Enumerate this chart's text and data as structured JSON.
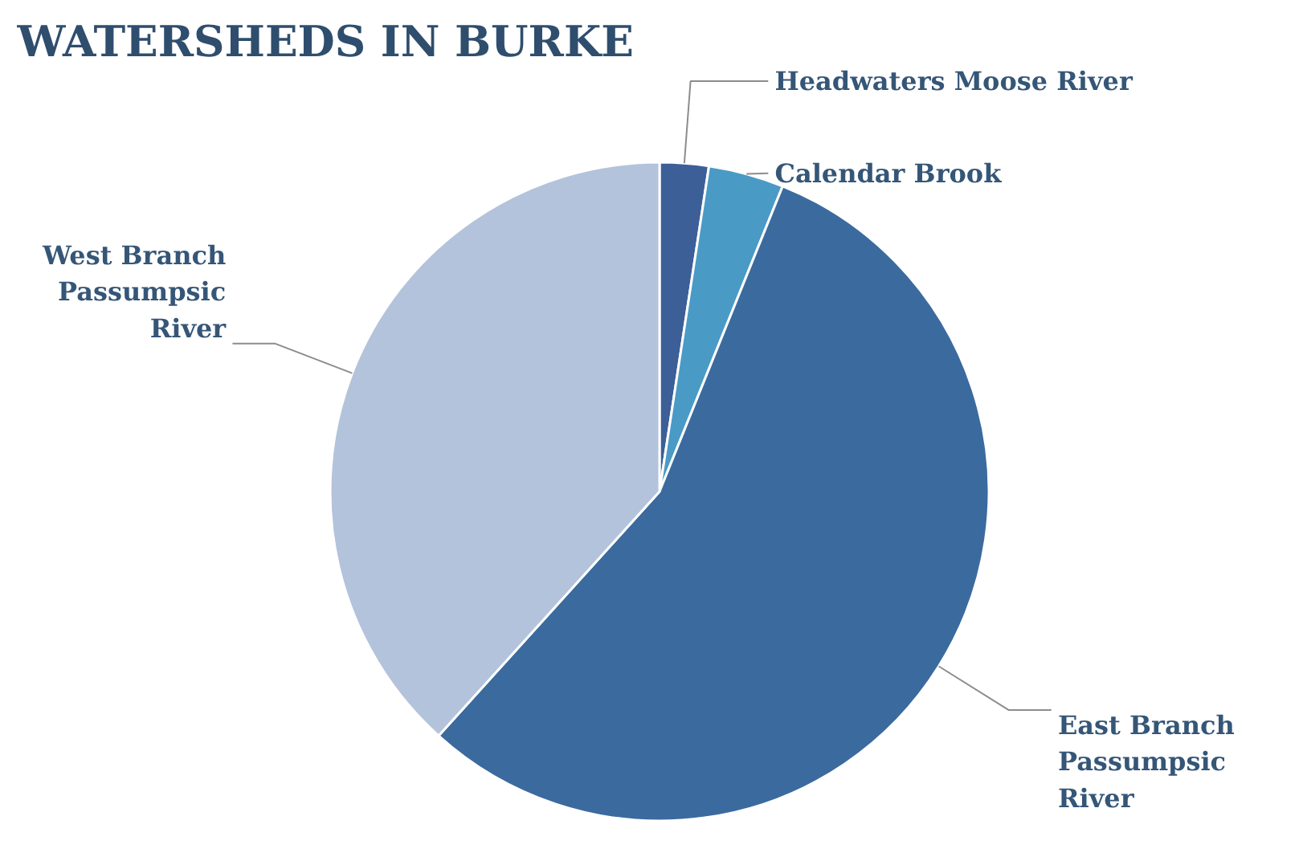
{
  "chart_data": {
    "type": "pie",
    "title": "WATERSHEDS IN BURKE",
    "categories": [
      "Headwaters Moose River",
      "Calendar Brook",
      "East Branch Passumpsic River",
      "West Branch Passumpsic River"
    ],
    "values": [
      2.4,
      3.7,
      55.6,
      38.3
    ],
    "colors": [
      "#3d5f98",
      "#4a9ac6",
      "#3b6a9e",
      "#b3c3db"
    ]
  }
}
